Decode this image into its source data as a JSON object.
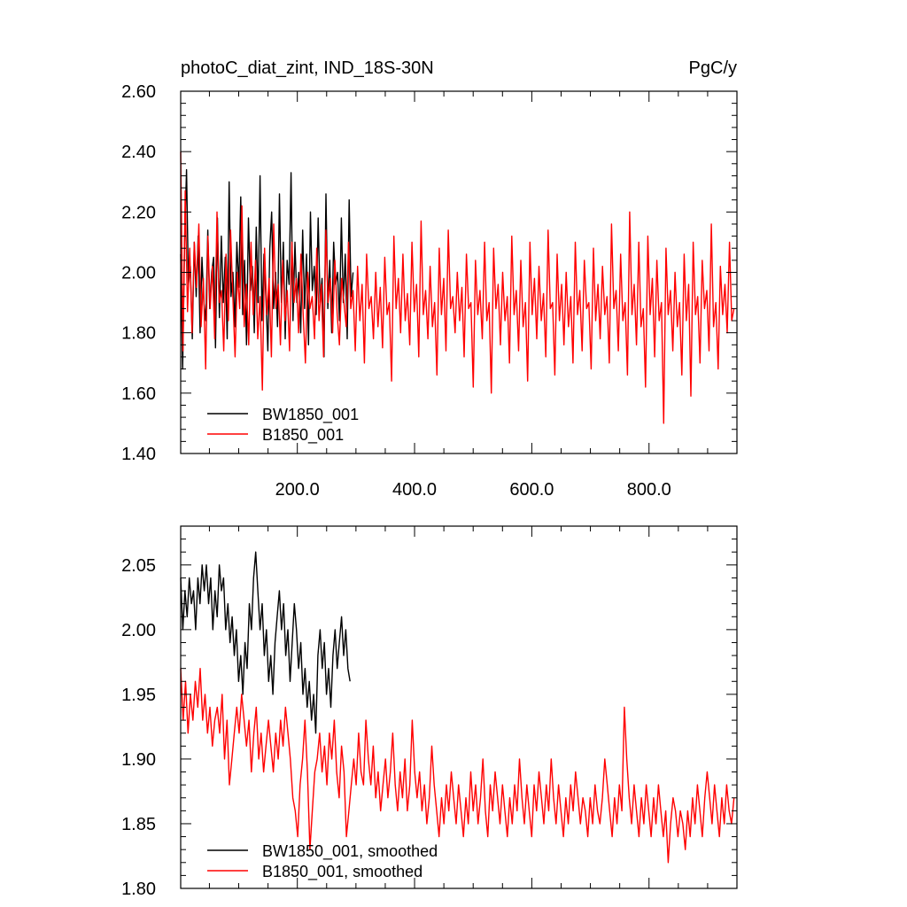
{
  "chart_data": [
    {
      "type": "line",
      "title": "photoC_diat_zint, IND_18S-30N",
      "units": "PgC/y",
      "xlim": [
        1,
        950
      ],
      "ylim": [
        1.4,
        2.6
      ],
      "x_ticks": [
        200,
        400,
        600,
        800
      ],
      "x_tick_labels": [
        "200.0",
        "400.0",
        "600.0",
        "800.0"
      ],
      "y_ticks": [
        1.4,
        1.6,
        1.8,
        2.0,
        2.2,
        2.4,
        2.6
      ],
      "y_tick_labels": [
        "1.40",
        "1.60",
        "1.80",
        "2.00",
        "2.20",
        "2.40",
        "2.60"
      ],
      "grid": false,
      "legend_position": "bottom-left",
      "series": [
        {
          "name": "BW1850_001",
          "color": "#000000",
          "x_range": [
            1,
            295
          ],
          "values": [
            2.06,
            1.68,
            2.1,
            2.34,
            1.96,
            2.02,
            1.78,
            2.1,
            1.92,
            2.12,
            1.8,
            2.05,
            1.9,
            1.84,
            2.14,
            1.88,
            2.0,
            2.05,
            1.75,
            2.18,
            1.85,
            2.12,
            1.9,
            2.05,
            1.78,
            2.3,
            1.92,
            2.0,
            1.82,
            2.1,
            1.95,
            2.25,
            1.86,
            2.04,
            1.76,
            2.18,
            1.94,
            2.02,
            1.8,
            2.15,
            1.9,
            2.32,
            1.84,
            2.06,
            1.92,
            1.74,
            2.08,
            2.2,
            1.88,
            2.0,
            1.82,
            2.26,
            1.9,
            2.1,
            1.78,
            2.04,
            1.96,
            2.33,
            1.84,
            2.1,
            1.9,
            2.0,
            1.8,
            2.14,
            1.88,
            2.06,
            1.76,
            2.2,
            1.94,
            2.02,
            1.86,
            2.18,
            1.9,
            1.98,
            1.72,
            2.26,
            1.88,
            2.04,
            1.8,
            2.1,
            1.96,
            2.0,
            1.84,
            2.18,
            1.9,
            2.06,
            1.78,
            2.24,
            1.92,
            2.0
          ]
        },
        {
          "name": "B1850_001",
          "color": "#ff0000",
          "x_range": [
            1,
            945
          ],
          "values": [
            2.4,
            1.74,
            2.27,
            1.87,
            2.08,
            1.8,
            2.1,
            1.95,
            2.16,
            1.82,
            1.98,
            1.68,
            2.12,
            1.88,
            2.02,
            1.78,
            2.2,
            1.9,
            1.94,
            1.74,
            2.06,
            1.84,
            2.14,
            1.92,
            1.72,
            2.0,
            1.88,
            2.22,
            1.82,
            1.96,
            1.76,
            2.1,
            1.86,
            2.04,
            1.78,
            1.92,
            1.61,
            2.08,
            1.86,
            1.98,
            1.72,
            2.16,
            1.88,
            1.96,
            1.76,
            2.04,
            1.84,
            1.94,
            1.74,
            2.1,
            1.9,
            1.98,
            1.8,
            2.06,
            1.86,
            1.7,
            2.0,
            1.88,
            1.92,
            1.78,
            2.08,
            1.84,
            1.96,
            1.72,
            2.14,
            1.9,
            1.98,
            1.8,
            2.04,
            1.86,
            1.76,
            1.98,
            1.9,
            1.82,
            2.1,
            1.88,
            1.94,
            1.74,
            2.02,
            1.84,
            1.96,
            1.7,
            2.06,
            1.88,
            1.92,
            1.78,
            2.0,
            1.82,
            1.95,
            1.75,
            2.05,
            1.86,
            1.9,
            1.64,
            2.12,
            1.88,
            1.98,
            1.8,
            2.06,
            1.84,
            1.93,
            1.76,
            2.1,
            1.87,
            1.96,
            1.72,
            2.17,
            1.86,
            1.94,
            1.78,
            2.02,
            1.82,
            1.9,
            1.66,
            2.08,
            1.86,
            1.98,
            1.74,
            2.14,
            1.88,
            1.92,
            1.8,
            2.0,
            1.84,
            1.95,
            1.72,
            2.06,
            1.88,
            1.9,
            1.62,
            2.04,
            1.86,
            1.94,
            1.78,
            2.1,
            1.84,
            1.9,
            1.6,
            2.08,
            1.88,
            1.96,
            1.76,
            2.0,
            1.84,
            1.92,
            1.7,
            2.12,
            1.86,
            1.94,
            1.74,
            2.04,
            1.82,
            1.9,
            1.64,
            2.1,
            1.86,
            1.98,
            1.78,
            2.02,
            1.84,
            1.93,
            1.72,
            2.14,
            1.88,
            1.9,
            1.66,
            2.06,
            1.84,
            1.96,
            1.76,
            2.0,
            1.82,
            1.92,
            1.7,
            2.1,
            1.86,
            1.94,
            1.74,
            2.04,
            1.88,
            1.9,
            1.68,
            2.08,
            1.84,
            1.96,
            1.78,
            2.02,
            1.86,
            1.92,
            1.7,
            2.16,
            1.88,
            1.94,
            1.74,
            2.06,
            1.84,
            1.9,
            1.66,
            2.2,
            1.86,
            1.96,
            1.76,
            2.1,
            1.82,
            1.88,
            1.62,
            2.12,
            1.86,
            1.98,
            1.72,
            2.04,
            1.84,
            1.9,
            1.5,
            2.08,
            1.86,
            1.94,
            1.74,
            2.0,
            1.82,
            1.9,
            1.66,
            2.06,
            1.84,
            1.96,
            1.59,
            2.1,
            1.86,
            1.92,
            1.7,
            2.04,
            1.88,
            1.94,
            1.74,
            2.16,
            1.82,
            1.9,
            1.68,
            2.02,
            1.86,
            1.96,
            1.8,
            2.1,
            1.84,
            1.88
          ]
        }
      ]
    },
    {
      "type": "line",
      "xlim": [
        1,
        950
      ],
      "ylim": [
        1.8,
        2.08
      ],
      "x_ticks": [
        200,
        400,
        600,
        800
      ],
      "y_ticks": [
        1.8,
        1.85,
        1.9,
        1.95,
        2.0,
        2.05
      ],
      "y_tick_labels": [
        "1.80",
        "1.85",
        "1.90",
        "1.95",
        "2.00",
        "2.05"
      ],
      "grid": false,
      "legend_position": "bottom-left",
      "series": [
        {
          "name": "BW1850_001, smoothed",
          "color": "#000000",
          "x_range": [
            1,
            290
          ],
          "values": [
            2.04,
            2.0,
            2.03,
            2.01,
            2.04,
            2.02,
            2.03,
            2.0,
            2.04,
            2.02,
            2.05,
            2.03,
            2.05,
            2.02,
            2.04,
            2.0,
            2.03,
            2.01,
            2.05,
            2.03,
            2.04,
            2.0,
            2.02,
            1.99,
            2.01,
            1.98,
            2.0,
            1.96,
            1.98,
            1.95,
            1.99,
            1.97,
            2.02,
            2.0,
            2.04,
            2.06,
            2.03,
            2.0,
            2.02,
            1.98,
            2.0,
            1.96,
            1.98,
            1.95,
            1.99,
            2.01,
            2.03,
            2.0,
            2.02,
            1.98,
            2.0,
            1.96,
            1.99,
            2.02,
            2.0,
            1.97,
            1.99,
            1.95,
            1.97,
            1.94,
            1.96,
            1.93,
            1.95,
            1.92,
            1.98,
            2.0,
            1.97,
            1.99,
            1.95,
            1.97,
            1.94,
            1.98,
            2.0,
            1.97,
            1.99,
            2.01,
            1.98,
            2.0,
            1.97,
            1.96
          ]
        },
        {
          "name": "B1850_001, smoothed",
          "color": "#ff0000",
          "x_range": [
            1,
            945
          ],
          "values": [
            1.97,
            1.93,
            1.96,
            1.92,
            1.95,
            1.93,
            1.96,
            1.94,
            1.97,
            1.93,
            1.95,
            1.92,
            1.94,
            1.91,
            1.93,
            1.94,
            1.92,
            1.95,
            1.9,
            1.93,
            1.88,
            1.9,
            1.92,
            1.94,
            1.92,
            1.95,
            1.93,
            1.91,
            1.93,
            1.89,
            1.92,
            1.94,
            1.9,
            1.92,
            1.89,
            1.91,
            1.93,
            1.91,
            1.89,
            1.92,
            1.9,
            1.93,
            1.91,
            1.94,
            1.92,
            1.9,
            1.87,
            1.86,
            1.84,
            1.88,
            1.9,
            1.93,
            1.89,
            1.83,
            1.86,
            1.89,
            1.9,
            1.92,
            1.89,
            1.91,
            1.88,
            1.92,
            1.9,
            1.93,
            1.89,
            1.87,
            1.91,
            1.89,
            1.84,
            1.86,
            1.88,
            1.9,
            1.88,
            1.92,
            1.89,
            1.88,
            1.93,
            1.9,
            1.88,
            1.91,
            1.87,
            1.89,
            1.86,
            1.88,
            1.9,
            1.87,
            1.89,
            1.92,
            1.88,
            1.86,
            1.89,
            1.87,
            1.9,
            1.86,
            1.88,
            1.93,
            1.89,
            1.87,
            1.89,
            1.86,
            1.88,
            1.85,
            1.87,
            1.91,
            1.88,
            1.86,
            1.84,
            1.87,
            1.85,
            1.88,
            1.86,
            1.89,
            1.87,
            1.85,
            1.88,
            1.86,
            1.84,
            1.87,
            1.85,
            1.89,
            1.86,
            1.88,
            1.85,
            1.87,
            1.9,
            1.86,
            1.84,
            1.88,
            1.86,
            1.89,
            1.87,
            1.85,
            1.88,
            1.86,
            1.84,
            1.87,
            1.85,
            1.88,
            1.86,
            1.9,
            1.87,
            1.85,
            1.88,
            1.86,
            1.84,
            1.88,
            1.86,
            1.89,
            1.87,
            1.85,
            1.88,
            1.86,
            1.9,
            1.87,
            1.85,
            1.88,
            1.86,
            1.84,
            1.87,
            1.85,
            1.88,
            1.86,
            1.89,
            1.87,
            1.85,
            1.87,
            1.86,
            1.84,
            1.87,
            1.85,
            1.88,
            1.86,
            1.85,
            1.87,
            1.9,
            1.88,
            1.86,
            1.84,
            1.87,
            1.85,
            1.88,
            1.86,
            1.94,
            1.9,
            1.87,
            1.85,
            1.88,
            1.86,
            1.84,
            1.87,
            1.85,
            1.88,
            1.86,
            1.84,
            1.87,
            1.85,
            1.88,
            1.86,
            1.84,
            1.86,
            1.82,
            1.85,
            1.87,
            1.86,
            1.84,
            1.86,
            1.85,
            1.83,
            1.86,
            1.84,
            1.87,
            1.85,
            1.88,
            1.86,
            1.84,
            1.87,
            1.89,
            1.87,
            1.85,
            1.88,
            1.86,
            1.84,
            1.87,
            1.85,
            1.88,
            1.86,
            1.85,
            1.87
          ]
        }
      ]
    }
  ]
}
